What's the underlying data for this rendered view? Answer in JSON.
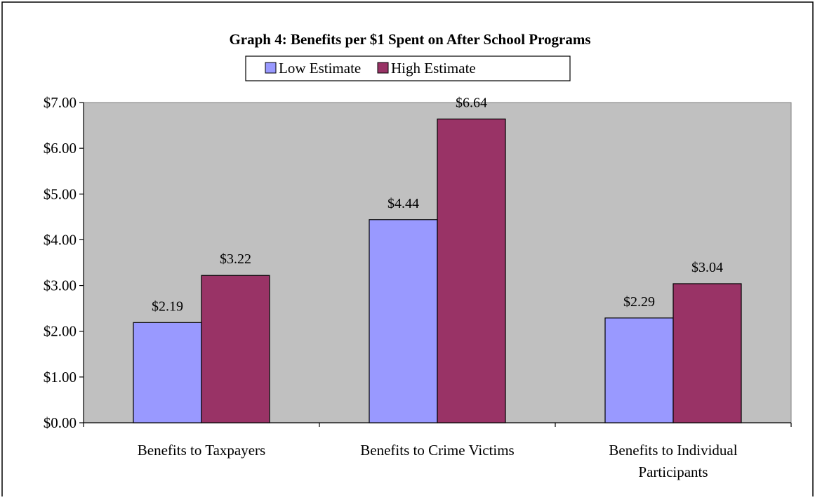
{
  "chart_data": {
    "type": "bar",
    "title": "Graph 4: Benefits per $1 Spent on After School Programs",
    "categories": [
      [
        "Benefits to Taxpayers"
      ],
      [
        "Benefits to Crime Victims"
      ],
      [
        "Benefits to Individual",
        "Participants"
      ]
    ],
    "series": [
      {
        "name": "Low Estimate",
        "values": [
          2.19,
          4.44,
          2.29
        ],
        "labels": [
          "$2.19",
          "$4.44",
          "$2.29"
        ]
      },
      {
        "name": "High Estimate",
        "values": [
          3.22,
          6.64,
          3.04
        ],
        "labels": [
          "$3.22",
          "$6.64",
          "$3.04"
        ]
      }
    ],
    "ylim": [
      0,
      7
    ],
    "yticks": [
      "$0.00",
      "$1.00",
      "$2.00",
      "$3.00",
      "$4.00",
      "$5.00",
      "$6.00",
      "$7.00"
    ],
    "xlabel": "",
    "ylabel": "",
    "grid": false,
    "legend_position": "top",
    "colors": {
      "low": "#9999ff",
      "high": "#993366",
      "plot_background": "#c0c0c0",
      "axis": "#000000"
    }
  }
}
